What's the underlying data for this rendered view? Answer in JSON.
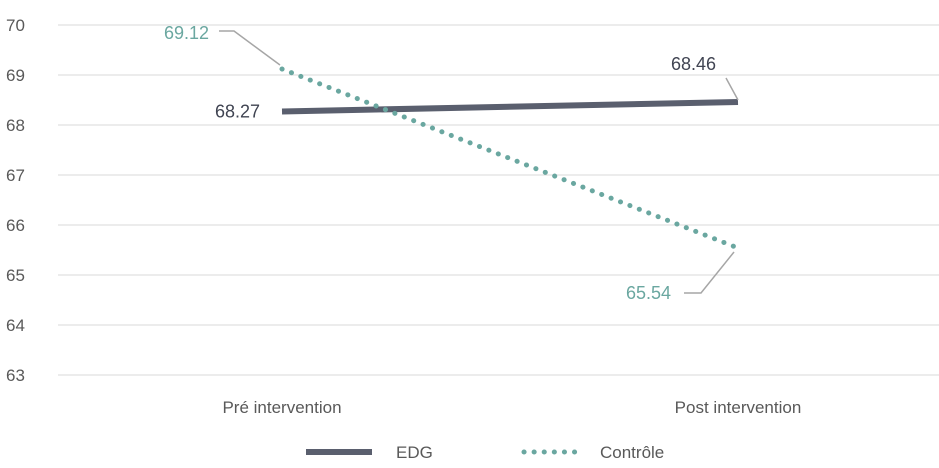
{
  "chart_data": {
    "type": "line",
    "title": "",
    "xlabel": "",
    "ylabel": "",
    "categories": [
      "Pré intervention",
      "Post intervention"
    ],
    "ylim": [
      63,
      70
    ],
    "yticks": [
      63,
      64,
      65,
      66,
      67,
      68,
      69,
      70
    ],
    "grid": true,
    "legend_position": "bottom",
    "series": [
      {
        "name": "EDG",
        "values": [
          68.27,
          68.46
        ],
        "labels": [
          "68.27",
          "68.46"
        ],
        "color": "#5a5f6e",
        "line_style": "solid"
      },
      {
        "name": "Contrôle",
        "values": [
          69.12,
          65.54
        ],
        "labels": [
          "69.12",
          "65.54"
        ],
        "color": "#6aa7a0",
        "line_style": "dotted"
      }
    ]
  }
}
